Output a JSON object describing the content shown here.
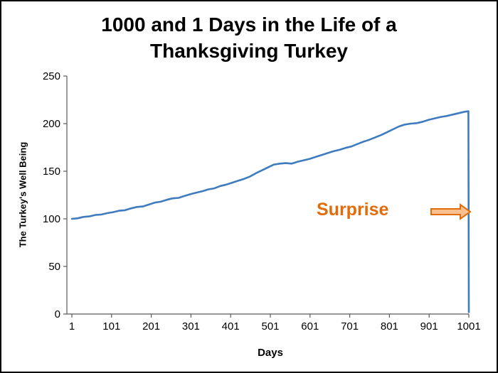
{
  "chart_data": {
    "type": "line",
    "title": "1000 and 1 Days in the Life of a Thanksgiving Turkey",
    "title_lines": [
      "1000 and 1 Days in the Life of a",
      "Thanksgiving Turkey"
    ],
    "xlabel": "Days",
    "ylabel": "The Turkey's Well Being",
    "xlim": [
      1,
      1001
    ],
    "ylim": [
      0,
      250
    ],
    "x_ticks": [
      1,
      101,
      201,
      301,
      401,
      501,
      601,
      701,
      801,
      901,
      1001
    ],
    "y_ticks": [
      0,
      50,
      100,
      150,
      200,
      250
    ],
    "grid": false,
    "legend": "none",
    "line_color": "#3E7BBF",
    "x": [
      1,
      15,
      30,
      45,
      60,
      75,
      90,
      105,
      120,
      135,
      150,
      165,
      180,
      195,
      210,
      225,
      240,
      255,
      270,
      285,
      300,
      315,
      330,
      345,
      360,
      375,
      390,
      405,
      420,
      435,
      450,
      465,
      480,
      495,
      510,
      525,
      540,
      555,
      570,
      585,
      600,
      615,
      630,
      645,
      660,
      675,
      690,
      705,
      720,
      735,
      750,
      765,
      780,
      795,
      810,
      825,
      840,
      855,
      870,
      885,
      900,
      915,
      930,
      945,
      960,
      975,
      990,
      1000,
      1001
    ],
    "y": [
      100,
      100.5,
      102,
      102.5,
      104,
      104.5,
      106,
      107,
      108.5,
      109,
      111,
      112.5,
      113,
      115,
      117,
      118,
      120,
      121.5,
      122,
      124,
      126,
      127.5,
      129,
      131,
      132,
      134.5,
      136,
      138,
      140,
      142,
      144.5,
      148,
      151,
      154,
      157,
      158,
      158.5,
      158,
      160,
      161.5,
      163,
      165,
      167,
      169,
      171,
      172.5,
      174.5,
      176,
      178.5,
      181,
      183,
      185.5,
      188,
      191,
      194,
      197,
      199,
      200,
      200.5,
      202,
      204,
      205.5,
      207,
      208,
      209.5,
      211,
      212.5,
      213,
      2
    ],
    "annotation": {
      "text": "Surprise",
      "text_color": "#E36C0A",
      "arrow_direction": "right",
      "arrow_fill": "#FAC090",
      "arrow_stroke": "#E36C0A"
    }
  }
}
